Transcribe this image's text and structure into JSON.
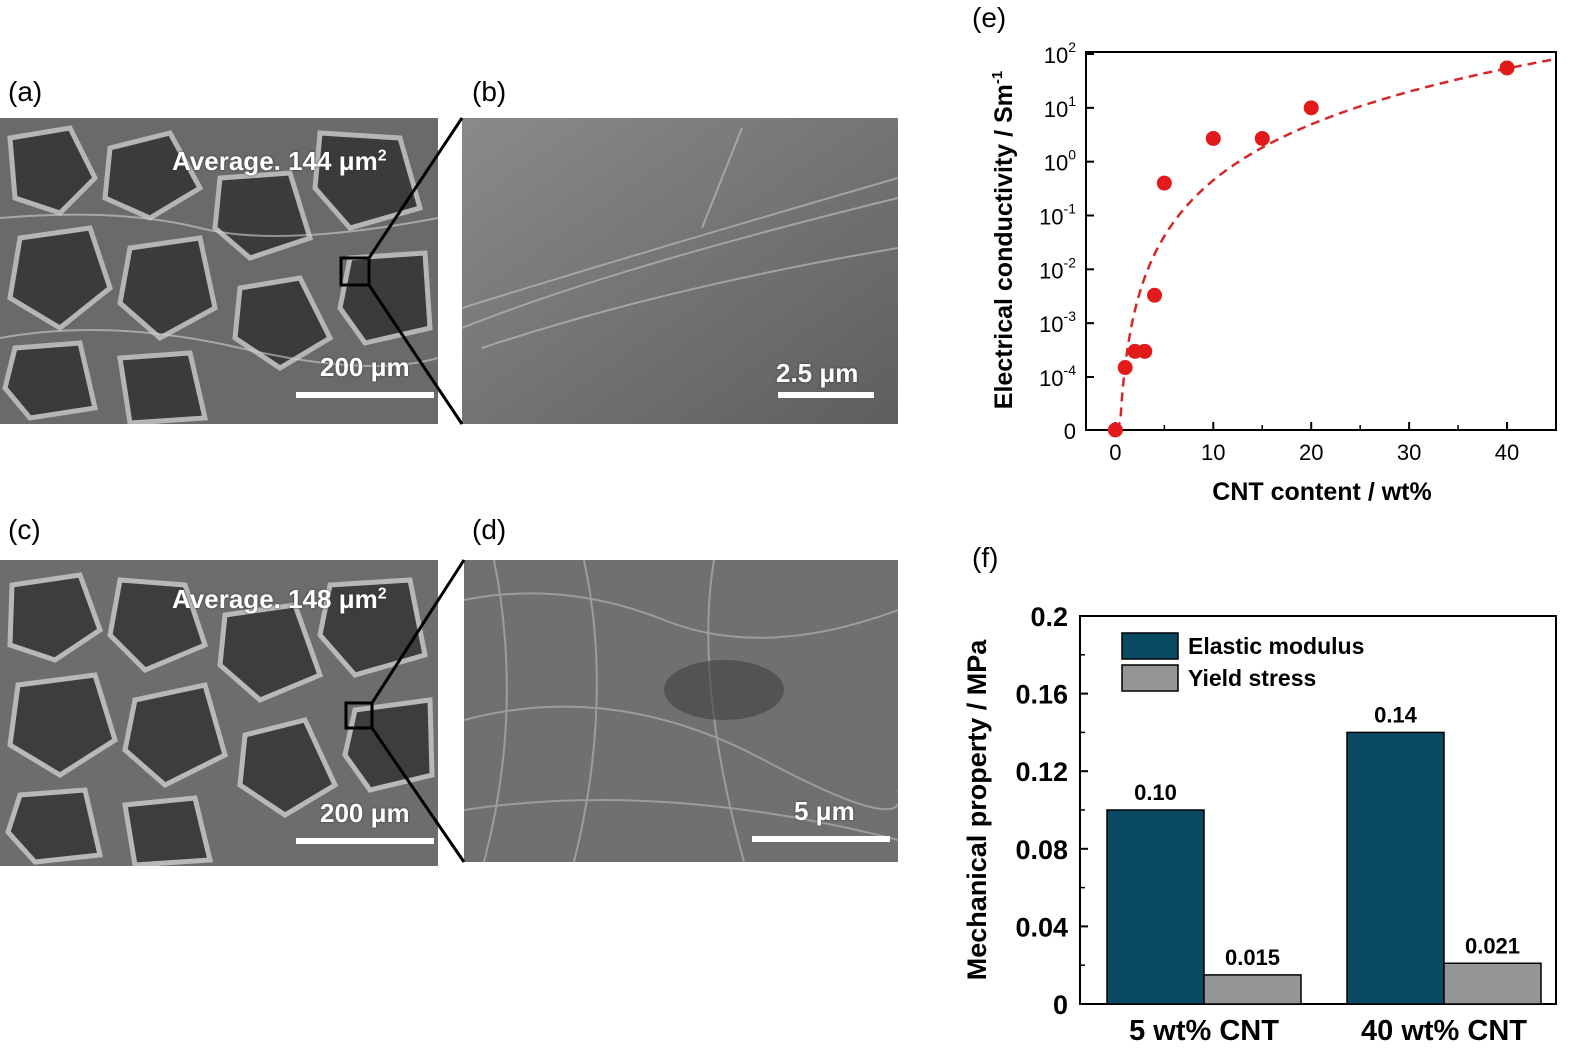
{
  "panels": {
    "a": {
      "label": "(a)",
      "annotation": "Average. 144 μm",
      "annotation_sup": "2",
      "scale": "200 μm"
    },
    "b": {
      "label": "(b)",
      "scale": "2.5 μm"
    },
    "c": {
      "label": "(c)",
      "annotation": "Average. 148 μm",
      "annotation_sup": "2",
      "scale": "200 μm"
    },
    "d": {
      "label": "(d)",
      "scale": "5 μm"
    },
    "e": {
      "label": "(e)"
    },
    "f": {
      "label": "(f)"
    }
  },
  "chart_data": [
    {
      "panel": "e",
      "type": "scatter",
      "xlabel": "CNT content   / wt%",
      "ylabel": "Electrical conductivity   / Sm",
      "ylabel_sup": "-1",
      "yscale": "log",
      "x_ticks": [
        "0",
        "10",
        "20",
        "30",
        "40"
      ],
      "y_ticks": [
        {
          "base": "0",
          "exp": ""
        },
        {
          "base": "10",
          "exp": "-4"
        },
        {
          "base": "10",
          "exp": "-3"
        },
        {
          "base": "10",
          "exp": "-2"
        },
        {
          "base": "10",
          "exp": "-1"
        },
        {
          "base": "10",
          "exp": "0"
        },
        {
          "base": "10",
          "exp": "1"
        },
        {
          "base": "10",
          "exp": "2"
        }
      ],
      "xlim": [
        -3,
        45
      ],
      "series": [
        {
          "marker_color": "#e31a1c",
          "points": [
            {
              "x": 0,
              "y": 0
            },
            {
              "x": 1,
              "y": 0.00015
            },
            {
              "x": 2,
              "y": 0.0003
            },
            {
              "x": 3,
              "y": 0.0003
            },
            {
              "x": 4,
              "y": 0.0033
            },
            {
              "x": 5,
              "y": 0.4
            },
            {
              "x": 10,
              "y": 2.7
            },
            {
              "x": 15,
              "y": 2.7
            },
            {
              "x": 20,
              "y": 10
            },
            {
              "x": 40,
              "y": 55
            }
          ]
        }
      ],
      "fit_line": {
        "style": "dashed",
        "color": "#d62728"
      },
      "grid": false
    },
    {
      "panel": "f",
      "type": "bar",
      "ylabel": "Mechanical property   / MPa",
      "categories": [
        "5 wt% CNT",
        "40 wt% CNT"
      ],
      "y_ticks": [
        "0",
        "0.04",
        "0.08",
        "0.12",
        "0.16",
        "0.2"
      ],
      "ylim": [
        0,
        0.2
      ],
      "series": [
        {
          "name": "Elastic modulus",
          "color": "#0b4a63",
          "values": [
            0.1,
            0.14
          ],
          "labels": [
            "0.10",
            "0.14"
          ]
        },
        {
          "name": "Yield stress",
          "color": "#959595",
          "values": [
            0.015,
            0.021
          ],
          "labels": [
            "0.015",
            "0.021"
          ]
        }
      ],
      "legend": "top-left",
      "grid": false
    }
  ]
}
